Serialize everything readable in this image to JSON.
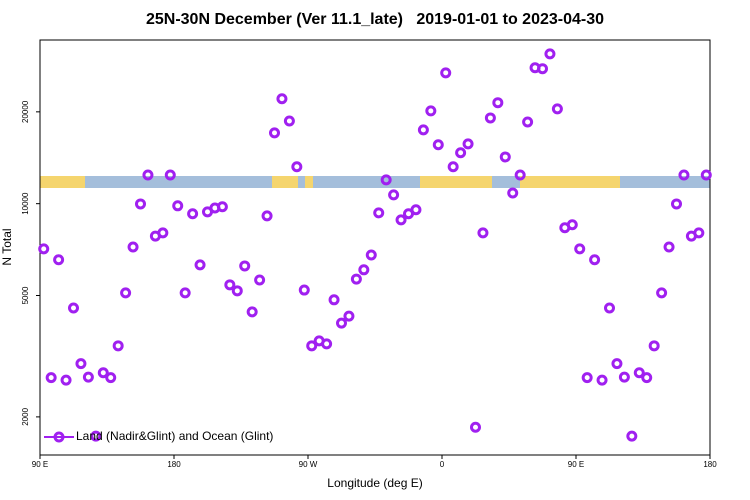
{
  "chart_data": {
    "type": "scatter",
    "title": "25N-30N December (Ver 11.1_late)   2019-01-01 to 2023-04-30",
    "x_label": "Longitude (deg E)",
    "y_label": "N Total",
    "xlim": [
      90,
      540
    ],
    "xticks": [
      {
        "value": 90,
        "label": "90 E"
      },
      {
        "value": 180,
        "label": "180"
      },
      {
        "value": 270,
        "label": "90 W"
      },
      {
        "value": 360,
        "label": "0"
      },
      {
        "value": 450,
        "label": "90 E"
      },
      {
        "value": 540,
        "label": "180"
      }
    ],
    "ylim": [
      1500,
      34400
    ],
    "ylog": true,
    "yticks": [
      2000,
      5000,
      10000,
      20000
    ],
    "legend_position": "bottom-left",
    "x": [
      92.5,
      97.5,
      102.5,
      107.5,
      112.5,
      117.5,
      122.5,
      127.5,
      132.5,
      137.5,
      142.5,
      147.5,
      152.5,
      157.5,
      162.5,
      167.5,
      172.5,
      177.5,
      182.5,
      187.5,
      192.5,
      197.5,
      202.5,
      207.5,
      212.5,
      217.5,
      222.5,
      227.5,
      232.5,
      237.5,
      242.5,
      247.5,
      252.5,
      257.5,
      262.5,
      267.5,
      272.5,
      277.5,
      282.5,
      287.5,
      292.5,
      297.5,
      302.5,
      307.5,
      312.5,
      317.5,
      322.5,
      327.5,
      332.5,
      337.5,
      342.5,
      347.5,
      352.5,
      357.5,
      362.5,
      367.5,
      372.5,
      377.5,
      382.5,
      387.5,
      392.5,
      397.5,
      402.5,
      407.5,
      412.5,
      417.5,
      422.5,
      427.5,
      432.5,
      437.5,
      442.5,
      447.5,
      452.5,
      457.5,
      462.5,
      467.5,
      472.5,
      477.5,
      482.5,
      487.5,
      492.5,
      497.5,
      502.5,
      507.5,
      512.5,
      517.5,
      522.5,
      527.5,
      532.5,
      537.5
    ],
    "series": [
      {
        "name": "Land (Nadir&Glint) and Ocean (Glint)",
        "color": "#a020f0",
        "values": [
          7110,
          2690,
          6550,
          2640,
          4550,
          2990,
          2700,
          1730,
          2790,
          2690,
          3420,
          5100,
          7210,
          9980,
          12420,
          7830,
          8020,
          12420,
          9840,
          5100,
          9270,
          6300,
          9400,
          9680,
          9770,
          5420,
          5180,
          6250,
          4420,
          5620,
          9120,
          17060,
          22080,
          18660,
          13210,
          5210,
          3420,
          3550,
          3470,
          4840,
          4060,
          4280,
          5660,
          6070,
          6790,
          9330,
          11970,
          10690,
          8850,
          9270,
          9550,
          17460,
          20140,
          15600,
          26850,
          13210,
          14690,
          15700,
          1850,
          8020,
          19100,
          21430,
          14230,
          10840,
          12420,
          18530,
          27900,
          27700,
          30970,
          20460,
          8340,
          8530,
          7110,
          2690,
          6550,
          2640,
          4550,
          2990,
          2700,
          1730,
          2790,
          2690,
          3420,
          5100,
          7210,
          9980,
          12420,
          7830,
          8020,
          12420
        ]
      }
    ]
  }
}
